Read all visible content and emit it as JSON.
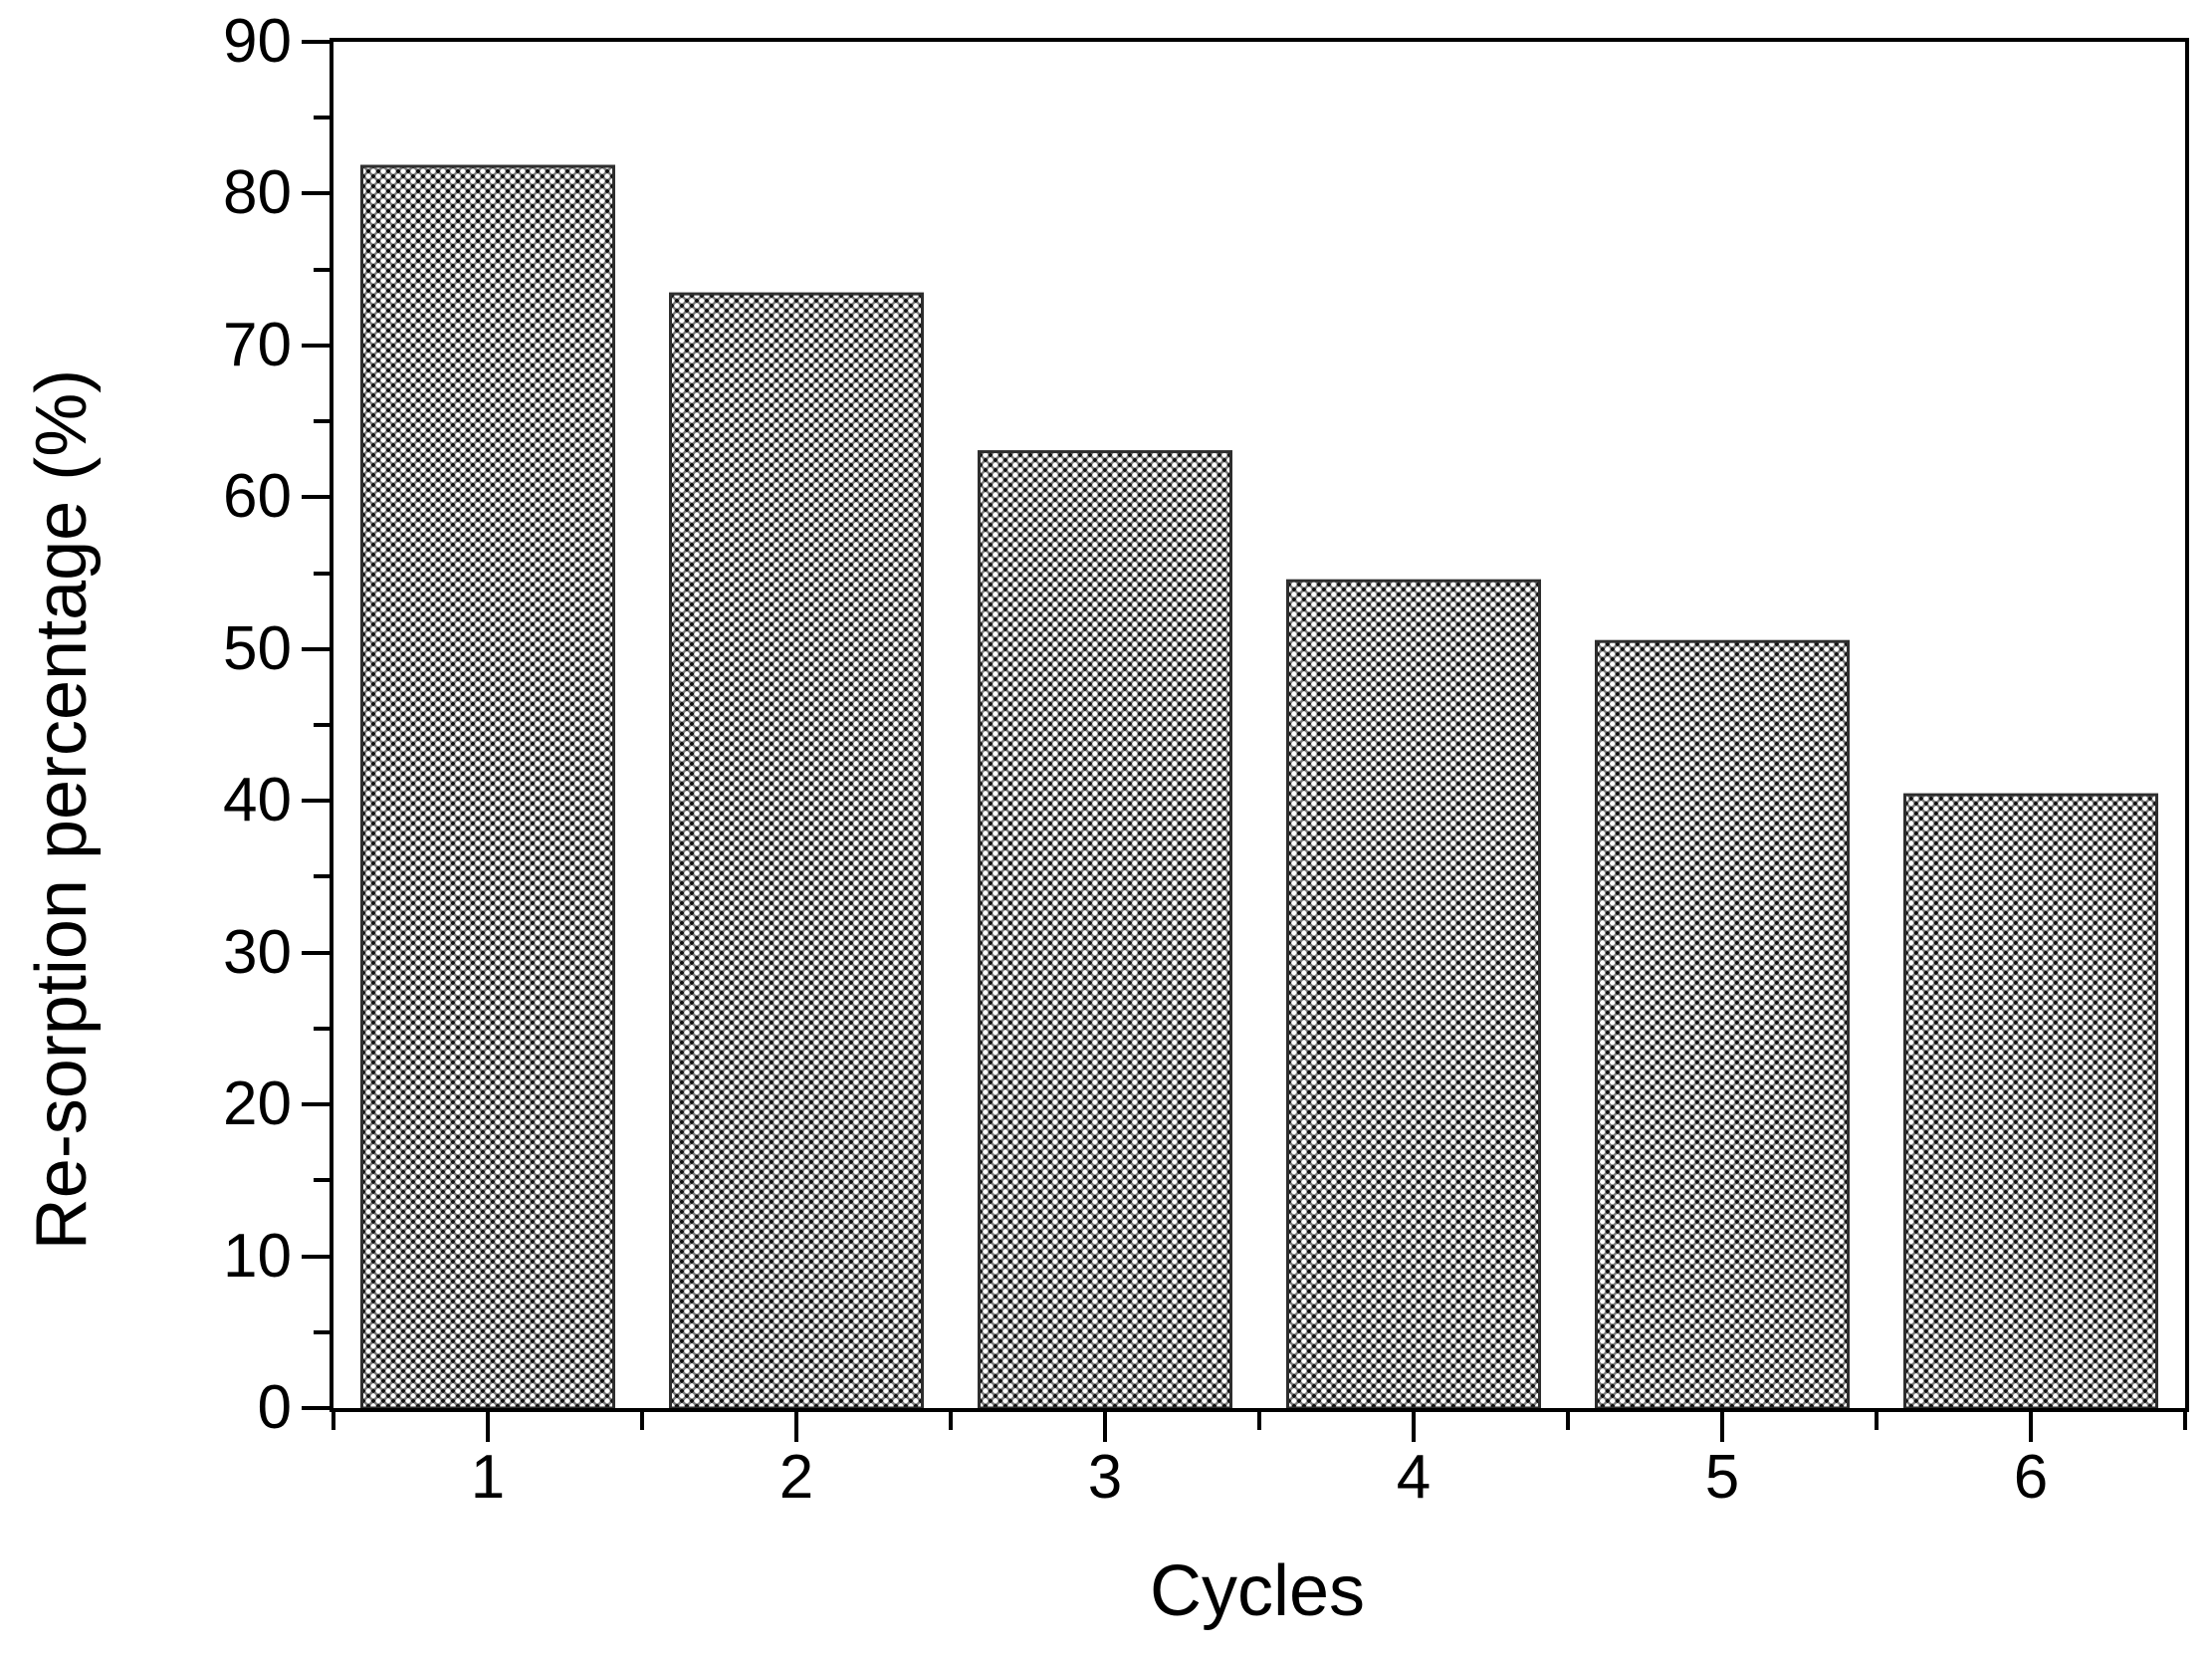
{
  "chart_data": {
    "type": "bar",
    "title": "",
    "xlabel": "Cycles",
    "ylabel": "Re-sorption percentage (%)",
    "categories": [
      "1",
      "2",
      "3",
      "4",
      "5",
      "6"
    ],
    "values": [
      81.8,
      73.4,
      63.0,
      54.5,
      50.5,
      40.4
    ],
    "ylim": [
      0,
      90
    ],
    "ytick_major": [
      0,
      10,
      20,
      30,
      40,
      50,
      60,
      70,
      80,
      90
    ],
    "ytick_minor": [
      5,
      15,
      25,
      35,
      45,
      55,
      65,
      75,
      85
    ],
    "grid": "off",
    "legend": "none",
    "bar_width_fraction": 0.815,
    "style": {
      "background": "#ffffff",
      "axis_color": "#000000",
      "text_color": "#000000",
      "bar_edge_color": "#2e2e2e",
      "bar_fill_pattern": "dense-crosshatch",
      "hatch_line_color": "#7a7a7a",
      "hatch_dot_color": "#101010",
      "hatch_background": "#ffffff"
    }
  }
}
